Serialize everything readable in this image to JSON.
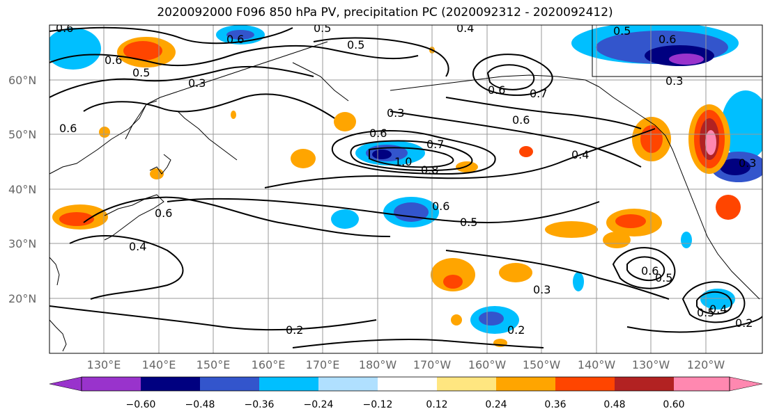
{
  "title": "2020092000 F096 850 hPa PV, precipitation PC (2020092312 - 2020092412)",
  "lat_labels": [
    "60°N",
    "50°N",
    "40°N",
    "30°N",
    "20°N"
  ],
  "lon_labels": [
    "130°E",
    "140°E",
    "150°E",
    "160°E",
    "170°E",
    "180°W",
    "170°W",
    "160°W",
    "150°W",
    "140°W",
    "130°W",
    "120°W"
  ],
  "colorbar": {
    "ticks": [
      "−0.60",
      "−0.48",
      "−0.36",
      "−0.24",
      "−0.12",
      "0.12",
      "0.24",
      "0.36",
      "0.48",
      "0.60"
    ],
    "colors": [
      "#9933cc",
      "#000080",
      "#3355cc",
      "#00bfff",
      "#b0e0ff",
      "#ffffff",
      "#ffe680",
      "#ffa500",
      "#ff4500",
      "#b22222",
      "#ff88b0"
    ]
  },
  "contour_labels": [
    "0.6",
    "0.6",
    "0.5",
    "0.4",
    "0.5",
    "0.5",
    "0.6",
    "0.3",
    "0.3",
    "0.6",
    "0.6",
    "0.7",
    "0.6",
    "0.7",
    "0.8",
    "1.0",
    "0.4",
    "0.6",
    "0.6",
    "0.5",
    "0.4",
    "0.3",
    "0.2",
    "0.2",
    "0.6",
    "0.5",
    "0.5",
    "0.4",
    "0.2",
    "0.3",
    "0.3",
    "0.6",
    "0.5",
    "0.6"
  ]
}
